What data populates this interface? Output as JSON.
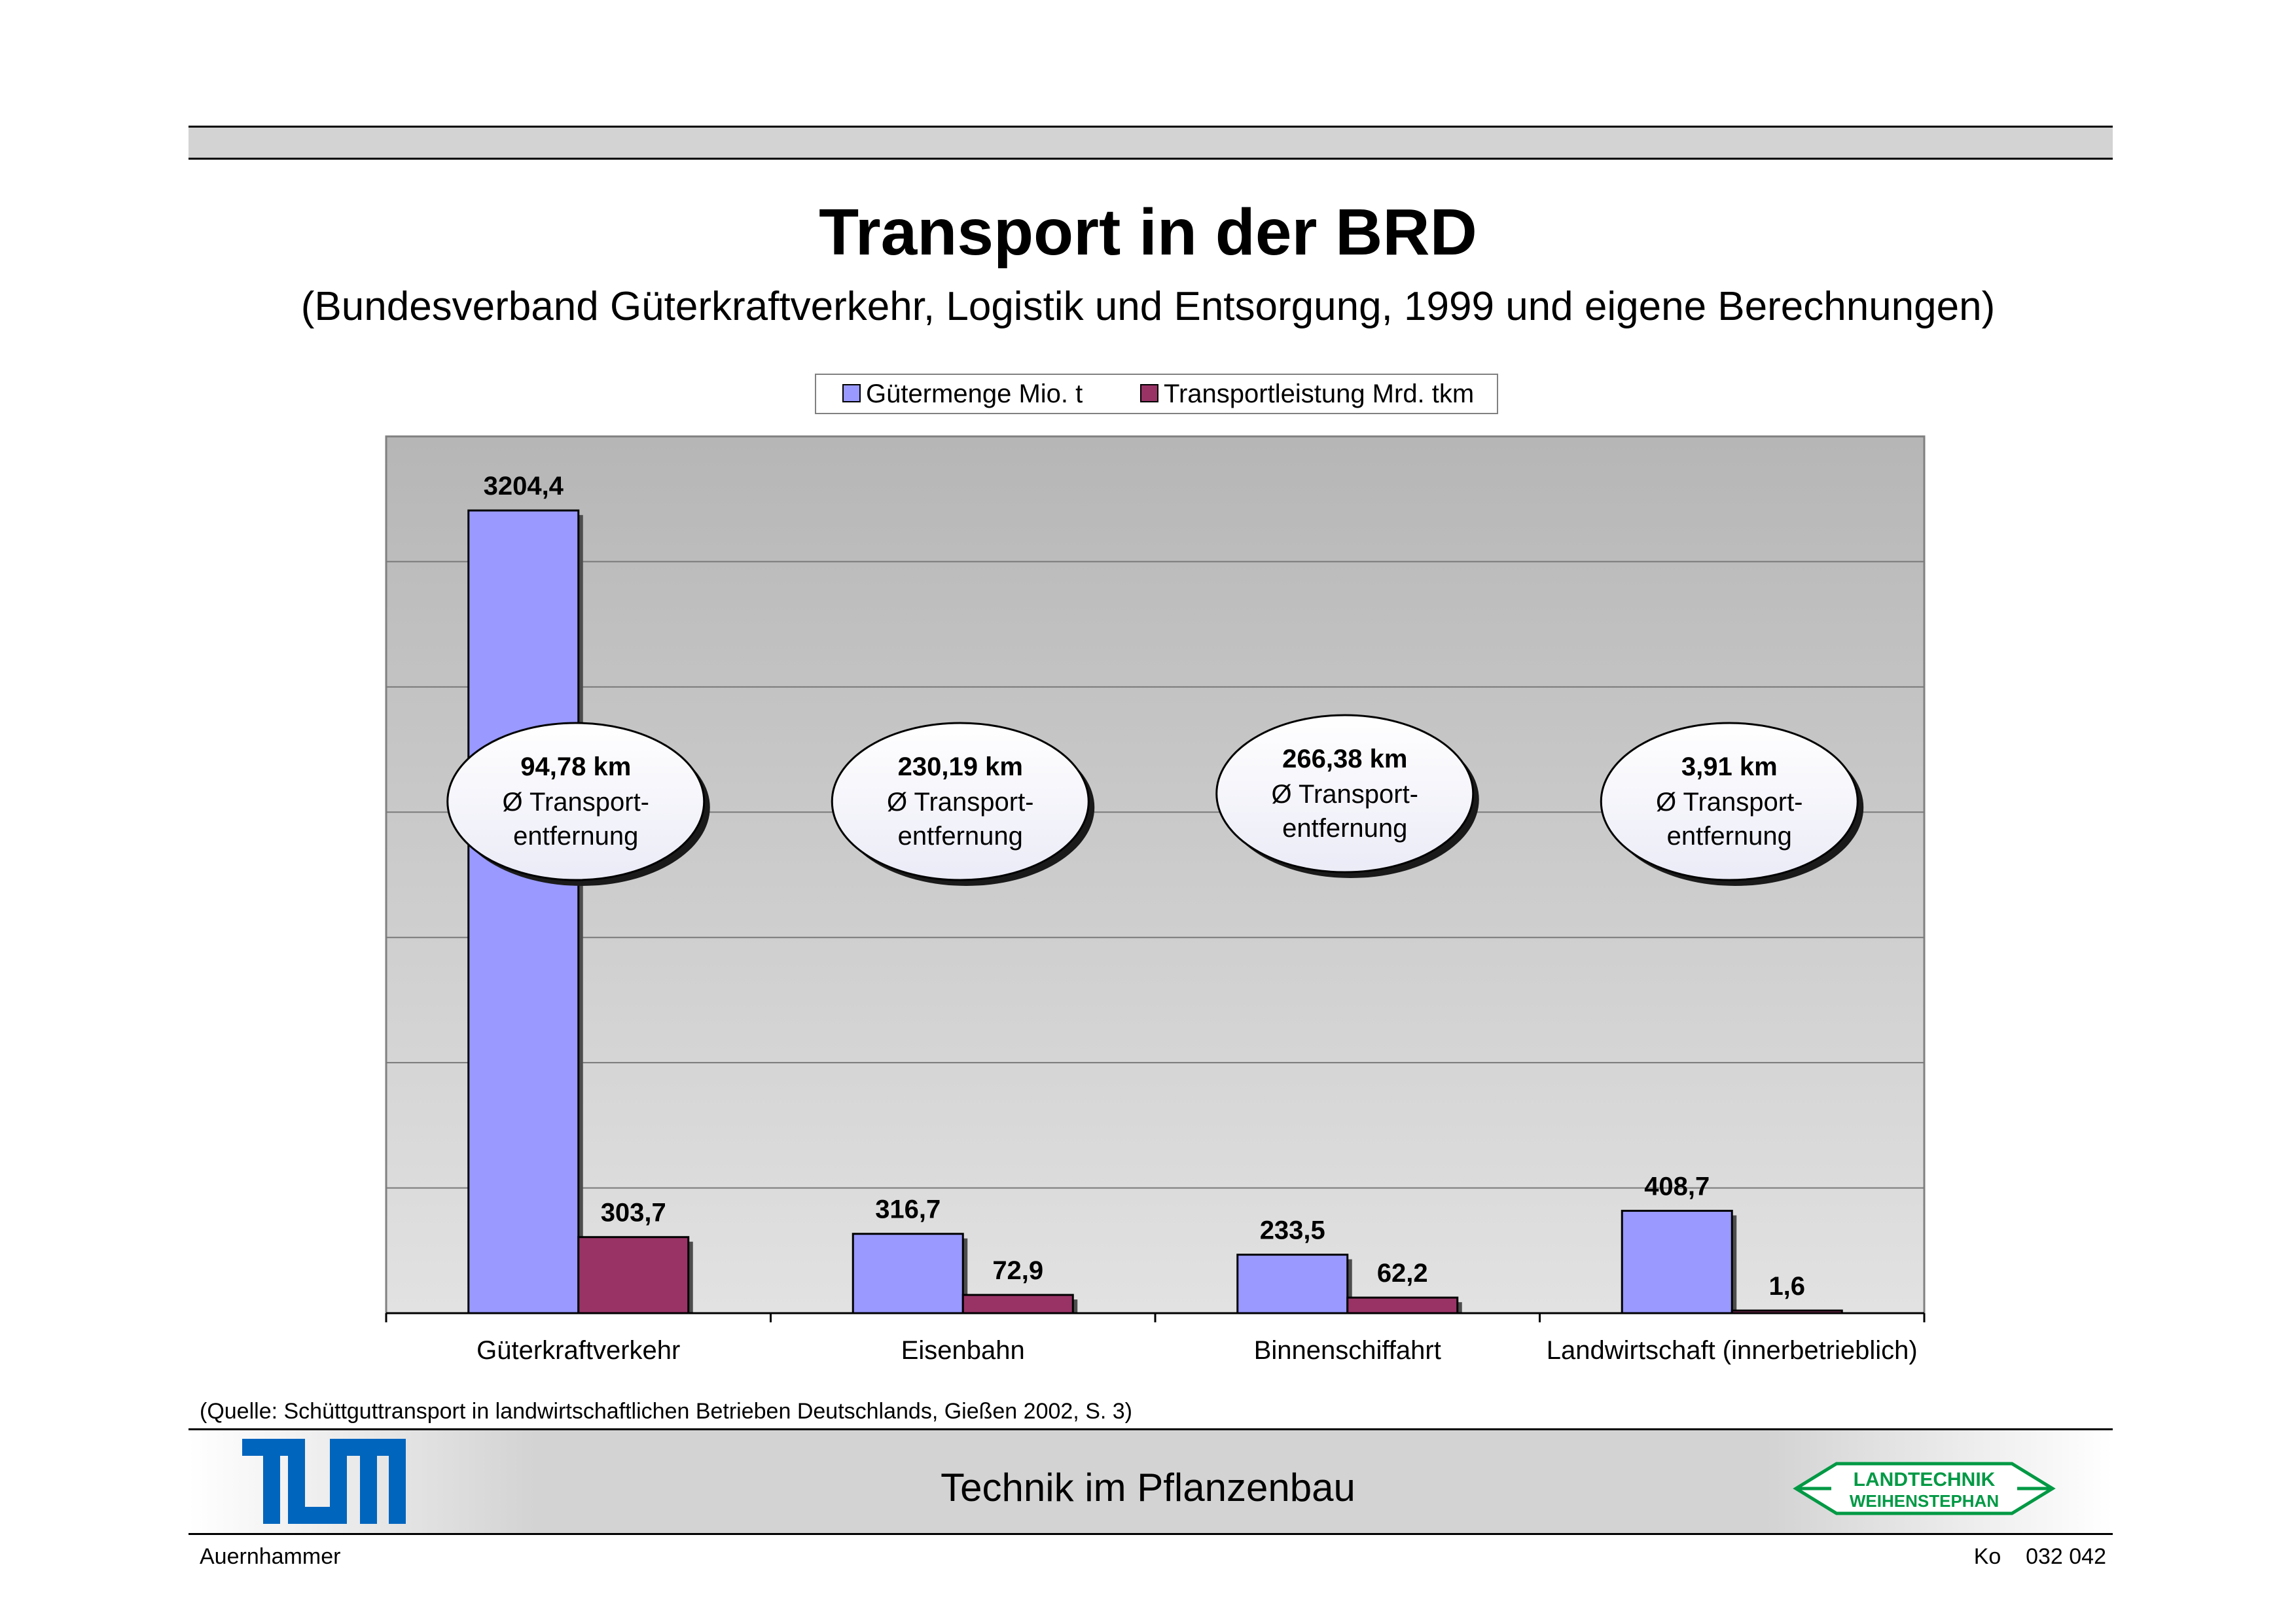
{
  "header": {
    "title": "Transport in der BRD",
    "subtitle": "(Bundesverband Güterkraftverkehr, Logistik und Entsorgung, 1999 und eigene Berechnungen)"
  },
  "legend": {
    "items": [
      {
        "label": "Gütermenge Mio. t",
        "color": "#9999ff"
      },
      {
        "label": "Transportleistung Mrd. tkm",
        "color": "#993366"
      }
    ]
  },
  "chart_data": {
    "type": "bar",
    "categories": [
      "Güterkraftverkehr",
      "Eisenbahn",
      "Binnenschiffahrt",
      "Landwirtschaft (innerbetrieblich)"
    ],
    "series": [
      {
        "name": "Gütermenge Mio. t",
        "color": "#9999ff",
        "values": [
          3204.4,
          316.7,
          233.5,
          408.7
        ],
        "labels": [
          "3204,4",
          "316,7",
          "233,5",
          "408,7"
        ]
      },
      {
        "name": "Transportleistung Mrd. tkm",
        "color": "#993366",
        "values": [
          303.7,
          72.9,
          62.2,
          1.6
        ],
        "labels": [
          "303,7",
          "72,9",
          "62,2",
          "1,6"
        ]
      }
    ],
    "ylim": [
      0,
      3500
    ],
    "gridlines": [
      500,
      1000,
      1500,
      2000,
      2500,
      3000
    ],
    "grid": true,
    "legend_position": "top",
    "annotations": [
      {
        "distance": "94,78 km",
        "line1": "Ø Transport-",
        "line2": "entfernung"
      },
      {
        "distance": "230,19 km",
        "line1": "Ø Transport-",
        "line2": "entfernung"
      },
      {
        "distance": "266,38 km",
        "line1": "Ø Transport-",
        "line2": "entfernung"
      },
      {
        "distance": "3,91 km",
        "line1": "Ø Transport-",
        "line2": "entfernung"
      }
    ],
    "title": "",
    "xlabel": "",
    "ylabel": ""
  },
  "source": "(Quelle: Schüttguttransport in landwirtschaftlichen Betrieben Deutschlands, Gießen 2002, S. 3)",
  "footer": {
    "title": "Technik im Pflanzenbau",
    "author": "Auernhammer",
    "code": "Ko    032 042",
    "logo_left_text": "TUM",
    "logo_right_line1": "LANDTECHNIK",
    "logo_right_line2": "WEIHENSTEPHAN",
    "logo_right_color": "#009944",
    "tum_color": "#0065bd"
  }
}
